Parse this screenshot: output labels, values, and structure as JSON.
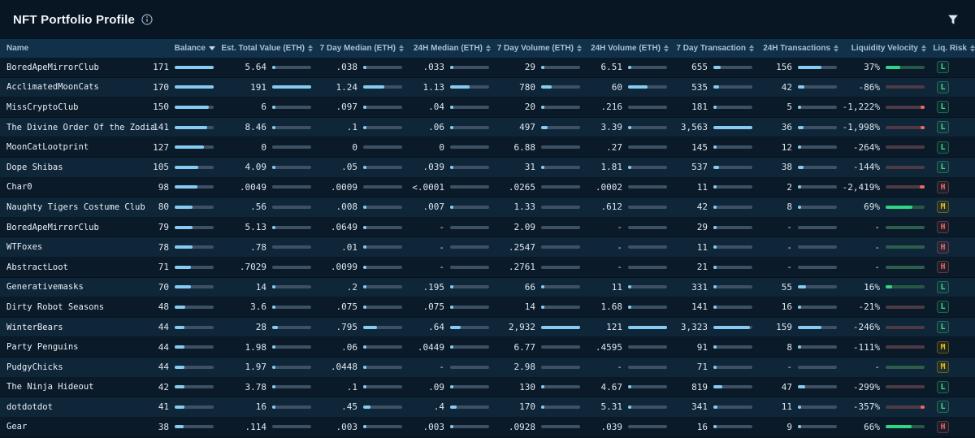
{
  "title": "NFT Portfolio Profile",
  "icons": {
    "title_info": "info-circle-icon",
    "filter": "funnel-icon",
    "sort_active": "caret-down-icon",
    "sort_inactive": "caret-updown-icon"
  },
  "colors": {
    "page_bg": "#081623",
    "header_bg": "#113049",
    "row_dark": "#0a1a29",
    "row_light": "#0f2538",
    "bar_fill": "#85cbf2",
    "bar_track": "#3e5164",
    "positive_green": "#2fd683",
    "negative_red": "#ef665e",
    "risk_low": "#43dd8c",
    "risk_medium": "#f0b90b",
    "risk_high": "#f4655f"
  },
  "columns": [
    {
      "label": "Name",
      "sort": "none"
    },
    {
      "label": "Balance",
      "sort": "desc"
    },
    {
      "label": "Est. Total Value (ETH)",
      "sort": "both"
    },
    {
      "label": "7 Day Median (ETH)",
      "sort": "both"
    },
    {
      "label": "24H Median (ETH)",
      "sort": "both"
    },
    {
      "label": "7 Day Volume (ETH)",
      "sort": "both"
    },
    {
      "label": "24H Volume (ETH)",
      "sort": "both"
    },
    {
      "label": "7 Day Transaction",
      "sort": "both"
    },
    {
      "label": "24H Transactions",
      "sort": "both"
    },
    {
      "label": "Liquidity Velocity",
      "sort": "both"
    },
    {
      "label": "Liq. Risk",
      "sort": "both"
    }
  ],
  "rows": [
    {
      "name": "BoredApeMirrorClub",
      "balance": {
        "v": "171",
        "f": 1.0
      },
      "est_total": {
        "v": "5.64",
        "f": 0.03
      },
      "d7_median": {
        "v": ".038",
        "f": 0.017
      },
      "h24_median": {
        "v": ".033",
        "f": 0.015
      },
      "d7_volume": {
        "v": "29",
        "f": 0.01
      },
      "h24_volume": {
        "v": "6.51",
        "f": 0.054
      },
      "d7_tx": {
        "v": "655",
        "f": 0.184
      },
      "h24_tx": {
        "v": "156",
        "f": 0.6
      },
      "liq_velocity": {
        "v": "37%",
        "type": "pos",
        "f": 0.37
      },
      "liq_risk": "L"
    },
    {
      "name": "AcclimatedMoonCats",
      "balance": {
        "v": "170",
        "f": 0.994
      },
      "est_total": {
        "v": "191",
        "f": 1.0
      },
      "d7_median": {
        "v": "1.24",
        "f": 0.54
      },
      "h24_median": {
        "v": "1.13",
        "f": 0.49
      },
      "d7_volume": {
        "v": "780",
        "f": 0.266
      },
      "h24_volume": {
        "v": "60",
        "f": 0.496
      },
      "d7_tx": {
        "v": "535",
        "f": 0.15
      },
      "h24_tx": {
        "v": "42",
        "f": 0.16
      },
      "liq_velocity": {
        "v": "-86%",
        "type": "neg",
        "f": 0
      },
      "liq_risk": "L"
    },
    {
      "name": "MissCryptoClub",
      "balance": {
        "v": "150",
        "f": 0.877
      },
      "est_total": {
        "v": "6",
        "f": 0.031
      },
      "d7_median": {
        "v": ".097",
        "f": 0.042
      },
      "h24_median": {
        "v": ".04",
        "f": 0.017
      },
      "d7_volume": {
        "v": "20",
        "f": 0.007
      },
      "h24_volume": {
        "v": ".216",
        "f": 0
      },
      "d7_tx": {
        "v": "181",
        "f": 0.051
      },
      "h24_tx": {
        "v": "5",
        "f": 0.02
      },
      "liq_velocity": {
        "v": "-1,222%",
        "type": "neg",
        "f": 0.05
      },
      "liq_risk": "L"
    },
    {
      "name": "The Divine Order Of the Zodiac",
      "balance": {
        "v": "141",
        "f": 0.825
      },
      "est_total": {
        "v": "8.46",
        "f": 0.044
      },
      "d7_median": {
        "v": ".1",
        "f": 0.043
      },
      "h24_median": {
        "v": ".06",
        "f": 0.026
      },
      "d7_volume": {
        "v": "497",
        "f": 0.17
      },
      "h24_volume": {
        "v": "3.39",
        "f": 0.028
      },
      "d7_tx": {
        "v": "3,563",
        "f": 1.0
      },
      "h24_tx": {
        "v": "36",
        "f": 0.138
      },
      "liq_velocity": {
        "v": "-1,998%",
        "type": "neg",
        "f": 0.1
      },
      "liq_risk": "L"
    },
    {
      "name": "MoonCatLootprint",
      "balance": {
        "v": "127",
        "f": 0.743
      },
      "est_total": {
        "v": "0",
        "f": 0
      },
      "d7_median": {
        "v": "0",
        "f": 0
      },
      "h24_median": {
        "v": "0",
        "f": 0
      },
      "d7_volume": {
        "v": "6.88",
        "f": 0
      },
      "h24_volume": {
        "v": ".27",
        "f": 0
      },
      "d7_tx": {
        "v": "145",
        "f": 0.041
      },
      "h24_tx": {
        "v": "12",
        "f": 0.046
      },
      "liq_velocity": {
        "v": "-264%",
        "type": "neg",
        "f": 0
      },
      "liq_risk": "L"
    },
    {
      "name": "Dope Shibas",
      "balance": {
        "v": "105",
        "f": 0.614
      },
      "est_total": {
        "v": "4.09",
        "f": 0.021
      },
      "d7_median": {
        "v": ".05",
        "f": 0.022
      },
      "h24_median": {
        "v": ".039",
        "f": 0.017
      },
      "d7_volume": {
        "v": "31",
        "f": 0.011
      },
      "h24_volume": {
        "v": "1.81",
        "f": 0.015
      },
      "d7_tx": {
        "v": "537",
        "f": 0.151
      },
      "h24_tx": {
        "v": "38",
        "f": 0.146
      },
      "liq_velocity": {
        "v": "-144%",
        "type": "neg",
        "f": 0
      },
      "liq_risk": "L"
    },
    {
      "name": "Char0",
      "balance": {
        "v": "98",
        "f": 0.573
      },
      "est_total": {
        "v": ".0049",
        "f": 0
      },
      "d7_median": {
        "v": ".0009",
        "f": 0
      },
      "h24_median": {
        "v": "<.0001",
        "f": 0
      },
      "d7_volume": {
        "v": ".0265",
        "f": 0
      },
      "h24_volume": {
        "v": ".0002",
        "f": 0
      },
      "d7_tx": {
        "v": "11",
        "f": 0.003
      },
      "h24_tx": {
        "v": "2",
        "f": 0.008
      },
      "liq_velocity": {
        "v": "-2,419%",
        "type": "neg",
        "f": 0.12
      },
      "liq_risk": "H"
    },
    {
      "name": "Naughty Tigers Costume Club",
      "balance": {
        "v": "80",
        "f": 0.468
      },
      "est_total": {
        "v": ".56",
        "f": 0
      },
      "d7_median": {
        "v": ".008",
        "f": 0.003
      },
      "h24_median": {
        "v": ".007",
        "f": 0.003
      },
      "d7_volume": {
        "v": "1.33",
        "f": 0
      },
      "h24_volume": {
        "v": ".612",
        "f": 0
      },
      "d7_tx": {
        "v": "42",
        "f": 0.012
      },
      "h24_tx": {
        "v": "8",
        "f": 0.031
      },
      "liq_velocity": {
        "v": "69%",
        "type": "pos",
        "f": 0.69
      },
      "liq_risk": "M"
    },
    {
      "name": "BoredApeMirrorClub",
      "balance": {
        "v": "79",
        "f": 0.462
      },
      "est_total": {
        "v": "5.13",
        "f": 0.027
      },
      "d7_median": {
        "v": ".0649",
        "f": 0.028
      },
      "h24_median": {
        "v": "-",
        "f": 0
      },
      "d7_volume": {
        "v": "2.09",
        "f": 0
      },
      "h24_volume": {
        "v": "-",
        "f": 0
      },
      "d7_tx": {
        "v": "29",
        "f": 0.008
      },
      "h24_tx": {
        "v": "-",
        "f": 0
      },
      "liq_velocity": {
        "v": "-",
        "type": "none",
        "f": 0
      },
      "liq_risk": "H"
    },
    {
      "name": "WTFoxes",
      "balance": {
        "v": "78",
        "f": 0.456
      },
      "est_total": {
        "v": ".78",
        "f": 0
      },
      "d7_median": {
        "v": ".01",
        "f": 0.004
      },
      "h24_median": {
        "v": "-",
        "f": 0
      },
      "d7_volume": {
        "v": ".2547",
        "f": 0
      },
      "h24_volume": {
        "v": "-",
        "f": 0
      },
      "d7_tx": {
        "v": "11",
        "f": 0.003
      },
      "h24_tx": {
        "v": "-",
        "f": 0
      },
      "liq_velocity": {
        "v": "-",
        "type": "none",
        "f": 0
      },
      "liq_risk": "H"
    },
    {
      "name": "AbstractLoot",
      "balance": {
        "v": "71",
        "f": 0.415
      },
      "est_total": {
        "v": ".7029",
        "f": 0
      },
      "d7_median": {
        "v": ".0099",
        "f": 0.004
      },
      "h24_median": {
        "v": "-",
        "f": 0
      },
      "d7_volume": {
        "v": ".2761",
        "f": 0
      },
      "h24_volume": {
        "v": "-",
        "f": 0
      },
      "d7_tx": {
        "v": "21",
        "f": 0.006
      },
      "h24_tx": {
        "v": "-",
        "f": 0
      },
      "liq_velocity": {
        "v": "-",
        "type": "none",
        "f": 0
      },
      "liq_risk": "H"
    },
    {
      "name": "Generativemasks",
      "balance": {
        "v": "70",
        "f": 0.409
      },
      "est_total": {
        "v": "14",
        "f": 0.073
      },
      "d7_median": {
        "v": ".2",
        "f": 0.087
      },
      "h24_median": {
        "v": ".195",
        "f": 0.085
      },
      "d7_volume": {
        "v": "66",
        "f": 0.023
      },
      "h24_volume": {
        "v": "11",
        "f": 0.091
      },
      "d7_tx": {
        "v": "331",
        "f": 0.093
      },
      "h24_tx": {
        "v": "55",
        "f": 0.212
      },
      "liq_velocity": {
        "v": "16%",
        "type": "pos",
        "f": 0.16
      },
      "liq_risk": "L"
    },
    {
      "name": "Dirty Robot Seasons",
      "balance": {
        "v": "48",
        "f": 0.281
      },
      "est_total": {
        "v": "3.6",
        "f": 0.019
      },
      "d7_median": {
        "v": ".075",
        "f": 0.033
      },
      "h24_median": {
        "v": ".075",
        "f": 0.033
      },
      "d7_volume": {
        "v": "14",
        "f": 0.005
      },
      "h24_volume": {
        "v": "1.68",
        "f": 0.014
      },
      "d7_tx": {
        "v": "141",
        "f": 0.04
      },
      "h24_tx": {
        "v": "16",
        "f": 0.062
      },
      "liq_velocity": {
        "v": "-21%",
        "type": "neg",
        "f": 0
      },
      "liq_risk": "L"
    },
    {
      "name": "WinterBears",
      "balance": {
        "v": "44",
        "f": 0.257
      },
      "est_total": {
        "v": "28",
        "f": 0.147
      },
      "d7_median": {
        "v": ".795",
        "f": 0.346
      },
      "h24_median": {
        "v": ".64",
        "f": 0.278
      },
      "d7_volume": {
        "v": "2,932",
        "f": 1.0
      },
      "h24_volume": {
        "v": "121",
        "f": 1.0
      },
      "d7_tx": {
        "v": "3,323",
        "f": 0.933
      },
      "h24_tx": {
        "v": "159",
        "f": 0.612
      },
      "liq_velocity": {
        "v": "-246%",
        "type": "neg",
        "f": 0
      },
      "liq_risk": "L"
    },
    {
      "name": "Party Penguins",
      "balance": {
        "v": "44",
        "f": 0.257
      },
      "est_total": {
        "v": "1.98",
        "f": 0.01
      },
      "d7_median": {
        "v": ".06",
        "f": 0.026
      },
      "h24_median": {
        "v": ".0449",
        "f": 0.02
      },
      "d7_volume": {
        "v": "6.77",
        "f": 0
      },
      "h24_volume": {
        "v": ".4595",
        "f": 0
      },
      "d7_tx": {
        "v": "91",
        "f": 0.026
      },
      "h24_tx": {
        "v": "8",
        "f": 0.031
      },
      "liq_velocity": {
        "v": "-111%",
        "type": "neg",
        "f": 0
      },
      "liq_risk": "M"
    },
    {
      "name": "PudgyChicks",
      "balance": {
        "v": "44",
        "f": 0.257
      },
      "est_total": {
        "v": "1.97",
        "f": 0.01
      },
      "d7_median": {
        "v": ".0448",
        "f": 0.019
      },
      "h24_median": {
        "v": "-",
        "f": 0
      },
      "d7_volume": {
        "v": "2.98",
        "f": 0
      },
      "h24_volume": {
        "v": "-",
        "f": 0
      },
      "d7_tx": {
        "v": "71",
        "f": 0.02
      },
      "h24_tx": {
        "v": "-",
        "f": 0
      },
      "liq_velocity": {
        "v": "-",
        "type": "none",
        "f": 0
      },
      "liq_risk": "M"
    },
    {
      "name": "The Ninja Hideout",
      "balance": {
        "v": "42",
        "f": 0.246
      },
      "est_total": {
        "v": "3.78",
        "f": 0.02
      },
      "d7_median": {
        "v": ".1",
        "f": 0.043
      },
      "h24_median": {
        "v": ".09",
        "f": 0.039
      },
      "d7_volume": {
        "v": "130",
        "f": 0.044
      },
      "h24_volume": {
        "v": "4.67",
        "f": 0.039
      },
      "d7_tx": {
        "v": "819",
        "f": 0.23
      },
      "h24_tx": {
        "v": "47",
        "f": 0.181
      },
      "liq_velocity": {
        "v": "-299%",
        "type": "neg",
        "f": 0
      },
      "liq_risk": "L"
    },
    {
      "name": "dotdotdot",
      "balance": {
        "v": "41",
        "f": 0.24
      },
      "est_total": {
        "v": "16",
        "f": 0.084
      },
      "d7_median": {
        "v": ".45",
        "f": 0.196
      },
      "h24_median": {
        "v": ".4",
        "f": 0.174
      },
      "d7_volume": {
        "v": "170",
        "f": 0.058
      },
      "h24_volume": {
        "v": "5.31",
        "f": 0.044
      },
      "d7_tx": {
        "v": "341",
        "f": 0.096
      },
      "h24_tx": {
        "v": "11",
        "f": 0.042
      },
      "liq_velocity": {
        "v": "-357%",
        "type": "neg",
        "f": 0.03
      },
      "liq_risk": "L"
    },
    {
      "name": "Gear",
      "balance": {
        "v": "38",
        "f": 0.222
      },
      "est_total": {
        "v": ".114",
        "f": 0
      },
      "d7_median": {
        "v": ".003",
        "f": 0.001
      },
      "h24_median": {
        "v": ".003",
        "f": 0.001
      },
      "d7_volume": {
        "v": ".0928",
        "f": 0
      },
      "h24_volume": {
        "v": ".039",
        "f": 0
      },
      "d7_tx": {
        "v": "16",
        "f": 0.004
      },
      "h24_tx": {
        "v": "9",
        "f": 0.035
      },
      "liq_velocity": {
        "v": "66%",
        "type": "pos",
        "f": 0.66
      },
      "liq_risk": "H"
    }
  ]
}
